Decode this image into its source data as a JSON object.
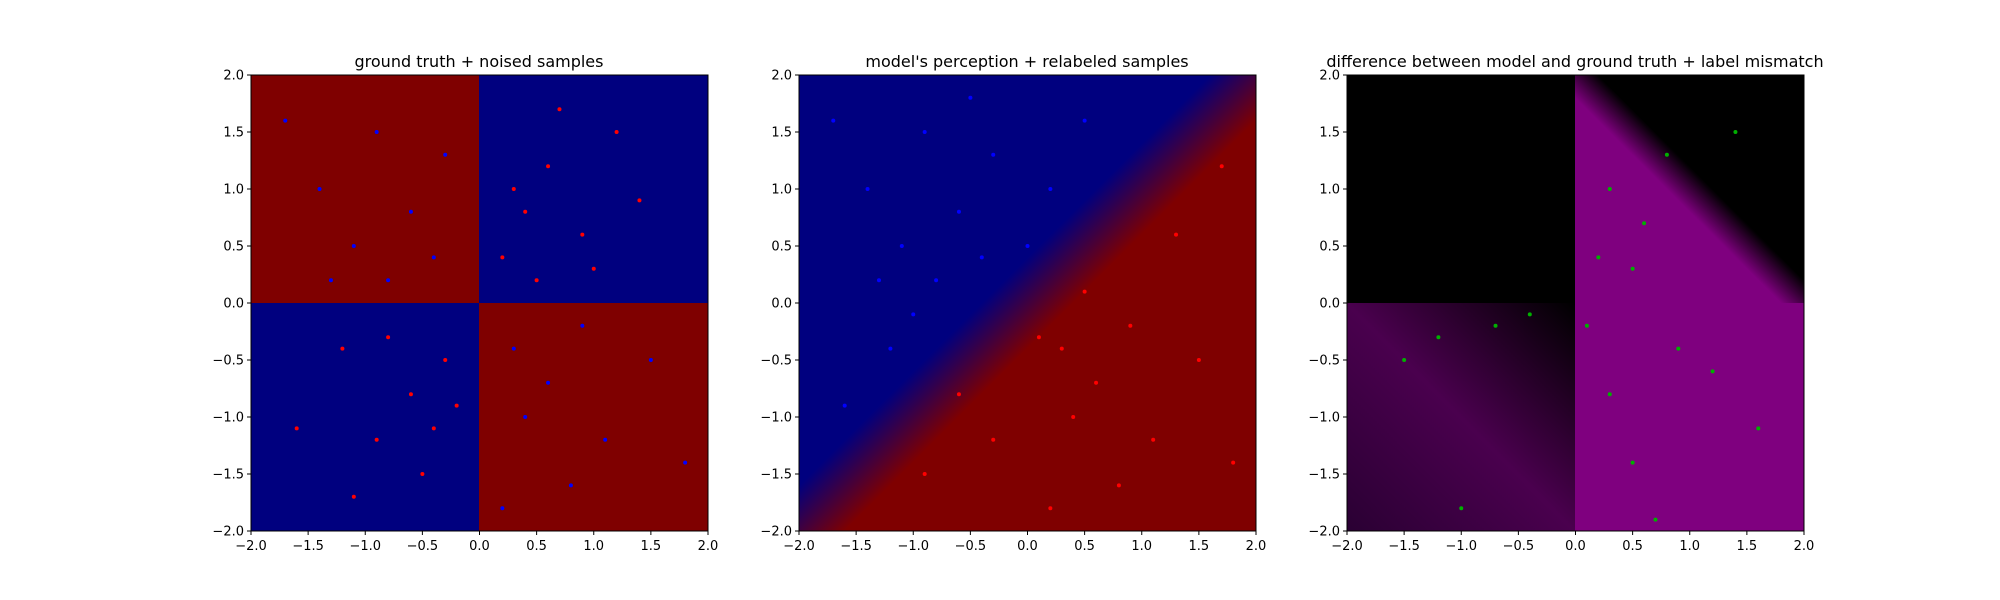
{
  "figure": {
    "background": "#ffffff"
  },
  "colors": {
    "class_a_region": "#7f0000",
    "class_b_region": "#00007f",
    "red_point": "#ff0000",
    "blue_point": "#0000ff",
    "mismatch_point": "#00b000",
    "mismatch_region": "#7f007f",
    "agree_region": "#000000"
  },
  "chart_data": [
    {
      "type": "scatter",
      "title": "ground truth + noised samples",
      "xlabel": "",
      "ylabel": "",
      "xlim": [
        -2.0,
        2.0
      ],
      "ylim": [
        -2.0,
        2.0
      ],
      "x_ticks": [
        "−2.0",
        "−1.5",
        "−1.0",
        "−0.5",
        "0.0",
        "0.5",
        "1.0",
        "1.5",
        "2.0"
      ],
      "y_ticks": [
        "−2.0",
        "−1.5",
        "−1.0",
        "−0.5",
        "0.0",
        "0.5",
        "1.0",
        "1.5",
        "2.0"
      ],
      "background": "XOR quadrants: dark red where x<0,y>0 and x>0,y<0; dark blue elsewhere",
      "series": [
        {
          "color": "#ff0000",
          "points": [
            [
              0.6,
              1.2
            ],
            [
              0.4,
              0.8
            ],
            [
              0.9,
              0.6
            ],
            [
              0.2,
              0.4
            ],
            [
              1.2,
              1.5
            ],
            [
              0.7,
              1.7
            ],
            [
              -0.6,
              -0.8
            ],
            [
              -0.9,
              -1.2
            ],
            [
              -0.3,
              -0.5
            ],
            [
              -1.2,
              -0.4
            ],
            [
              -0.5,
              -1.5
            ],
            [
              -1.6,
              -1.1
            ],
            [
              0.3,
              1.0
            ],
            [
              1.0,
              0.3
            ],
            [
              -0.8,
              -0.3
            ],
            [
              -0.4,
              -1.1
            ],
            [
              1.4,
              0.9
            ],
            [
              0.5,
              0.2
            ],
            [
              -1.1,
              -1.7
            ],
            [
              -0.2,
              -0.9
            ]
          ]
        },
        {
          "color": "#0000ff",
          "points": [
            [
              -0.6,
              0.8
            ],
            [
              -1.1,
              0.5
            ],
            [
              -0.3,
              1.3
            ],
            [
              -1.4,
              1.0
            ],
            [
              -0.8,
              0.2
            ],
            [
              0.6,
              -0.7
            ],
            [
              1.1,
              -1.2
            ],
            [
              0.3,
              -0.4
            ],
            [
              1.5,
              -0.5
            ],
            [
              0.8,
              -1.6
            ],
            [
              -0.4,
              0.4
            ],
            [
              -1.7,
              1.6
            ],
            [
              0.4,
              -1.0
            ],
            [
              1.8,
              -1.4
            ],
            [
              -0.9,
              1.5
            ],
            [
              0.9,
              -0.2
            ],
            [
              -1.3,
              0.2
            ],
            [
              0.2,
              -1.8
            ]
          ]
        }
      ]
    },
    {
      "type": "scatter",
      "title": "model's perception + relabeled samples",
      "xlabel": "",
      "ylabel": "",
      "xlim": [
        -2.0,
        2.0
      ],
      "ylim": [
        -2.0,
        2.0
      ],
      "x_ticks": [
        "−2.0",
        "−1.5",
        "−1.0",
        "−0.5",
        "0.0",
        "0.5",
        "1.0",
        "1.5",
        "2.0"
      ],
      "y_ticks": [
        "−2.0",
        "−1.5",
        "−1.0",
        "−0.5",
        "0.0",
        "0.5",
        "1.0",
        "1.5",
        "2.0"
      ],
      "background": "diagonal gradient: blue above the line y=x, red below",
      "series": [
        {
          "color": "#0000ff",
          "points": [
            [
              -0.6,
              0.8
            ],
            [
              -1.1,
              0.5
            ],
            [
              -0.3,
              1.3
            ],
            [
              -1.4,
              1.0
            ],
            [
              -0.8,
              0.2
            ],
            [
              -0.4,
              0.4
            ],
            [
              -1.7,
              1.6
            ],
            [
              -0.9,
              1.5
            ],
            [
              -1.3,
              0.2
            ],
            [
              0.2,
              1.0
            ],
            [
              0.5,
              1.6
            ],
            [
              -1.2,
              -0.4
            ],
            [
              -1.6,
              -0.9
            ],
            [
              0.0,
              0.5
            ],
            [
              -0.5,
              1.8
            ],
            [
              -1.0,
              -0.1
            ]
          ]
        },
        {
          "color": "#ff0000",
          "points": [
            [
              0.6,
              -0.7
            ],
            [
              1.1,
              -1.2
            ],
            [
              0.3,
              -0.4
            ],
            [
              1.5,
              -0.5
            ],
            [
              0.8,
              -1.6
            ],
            [
              0.4,
              -1.0
            ],
            [
              1.8,
              -1.4
            ],
            [
              0.9,
              -0.2
            ],
            [
              0.2,
              -1.8
            ],
            [
              -0.6,
              -0.8
            ],
            [
              -0.3,
              -1.2
            ],
            [
              0.5,
              0.1
            ],
            [
              1.3,
              0.6
            ],
            [
              -0.9,
              -1.5
            ],
            [
              0.1,
              -0.3
            ],
            [
              1.7,
              1.2
            ]
          ]
        }
      ]
    },
    {
      "type": "scatter",
      "title": "difference between model and ground truth + label mismatch",
      "xlabel": "",
      "ylabel": "",
      "xlim": [
        -2.0,
        2.0
      ],
      "ylim": [
        -2.0,
        2.0
      ],
      "x_ticks": [
        "−2.0",
        "−1.5",
        "−1.0",
        "−0.5",
        "0.0",
        "0.5",
        "1.0",
        "1.5",
        "2.0"
      ],
      "y_ticks": [
        "−2.0",
        "−1.5",
        "−1.0",
        "−0.5",
        "0.0",
        "0.5",
        "1.0",
        "1.5",
        "2.0"
      ],
      "background": "magenta where model and ground truth disagree, black where they agree",
      "series": [
        {
          "color": "#00b000",
          "points": [
            [
              0.3,
              1.0
            ],
            [
              0.6,
              0.7
            ],
            [
              0.2,
              0.4
            ],
            [
              0.8,
              1.3
            ],
            [
              0.5,
              0.3
            ],
            [
              1.4,
              1.5
            ],
            [
              0.9,
              -0.4
            ],
            [
              0.3,
              -0.8
            ],
            [
              1.2,
              -0.6
            ],
            [
              0.5,
              -1.4
            ],
            [
              1.6,
              -1.1
            ],
            [
              -0.4,
              -0.1
            ],
            [
              -1.2,
              -0.3
            ],
            [
              -0.7,
              -0.2
            ],
            [
              -1.5,
              -0.5
            ],
            [
              -1.0,
              -1.8
            ],
            [
              0.1,
              -0.2
            ],
            [
              0.7,
              -1.9
            ]
          ]
        }
      ]
    }
  ]
}
